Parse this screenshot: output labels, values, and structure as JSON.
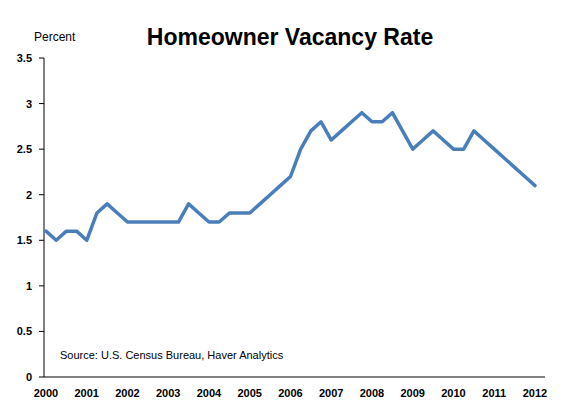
{
  "chart_data": {
    "type": "line",
    "title": "Homeowner Vacancy Rate",
    "y_label": "Percent",
    "annotation": "Source: U.S. Census Bureau, Haver Analytics",
    "categories": [
      "2000",
      null,
      null,
      null,
      "2001",
      null,
      null,
      null,
      "2002",
      null,
      null,
      null,
      "2003",
      null,
      null,
      null,
      "2004",
      null,
      null,
      null,
      "2005",
      null,
      null,
      null,
      "2006",
      null,
      null,
      null,
      "2007",
      null,
      null,
      null,
      "2008",
      null,
      null,
      null,
      "2009",
      null,
      null,
      null,
      "2010",
      null,
      null,
      null,
      "2011",
      null,
      null,
      null,
      "2012"
    ],
    "values": [
      1.6,
      1.5,
      1.6,
      1.6,
      1.5,
      1.8,
      1.9,
      1.8,
      1.7,
      1.7,
      1.7,
      1.7,
      1.7,
      1.7,
      1.9,
      1.8,
      1.7,
      1.7,
      1.8,
      1.8,
      1.8,
      1.9,
      2.0,
      2.1,
      2.2,
      2.5,
      2.7,
      2.8,
      2.6,
      2.7,
      2.8,
      2.9,
      2.8,
      2.8,
      2.9,
      2.7,
      2.5,
      2.6,
      2.7,
      2.6,
      2.5,
      2.5,
      2.7,
      2.6,
      2.5,
      2.4,
      2.3,
      2.2,
      2.1
    ],
    "color": "#4a7ebb",
    "ylim": [
      0,
      3.5
    ],
    "yticks": [
      0,
      0.5,
      1,
      1.5,
      2,
      2.5,
      3,
      3.5
    ],
    "grid": false
  }
}
